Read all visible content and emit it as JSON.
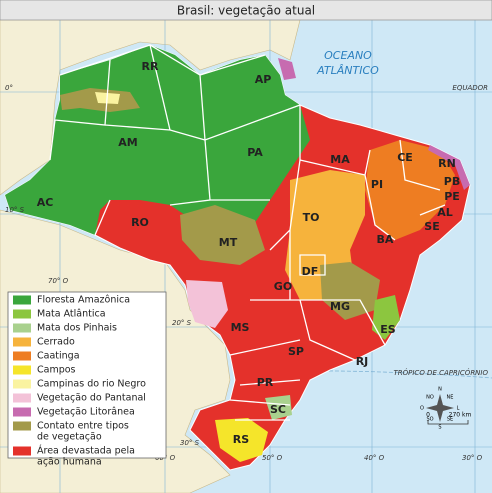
{
  "title": "Brasil: vegetação atual",
  "ocean": [
    "OCEANO",
    "ATLÂNTICO"
  ],
  "lines": {
    "equator": "EQUADOR",
    "tropic": "TRÓPICO DE CAPRICÓRNIO"
  },
  "coordinates": [
    "0°",
    "10° S",
    "20° S",
    "30° S",
    "70° O",
    "60° O",
    "50° O",
    "40° O",
    "30° O"
  ],
  "states": [
    "RR",
    "AP",
    "AM",
    "PA",
    "AC",
    "RO",
    "MT",
    "TO",
    "MA",
    "PI",
    "CE",
    "RN",
    "PB",
    "PE",
    "AL",
    "SE",
    "BA",
    "DF",
    "GO",
    "MG",
    "MS",
    "ES",
    "SP",
    "RJ",
    "PR",
    "SC",
    "RS"
  ],
  "legend": [
    {
      "label": [
        "Floresta Amazônica"
      ],
      "color": "#3aa63c"
    },
    {
      "label": [
        "Mata Atlântica"
      ],
      "color": "#8cc63f"
    },
    {
      "label": [
        "Mata dos Pinhais"
      ],
      "color": "#a9d18e"
    },
    {
      "label": [
        "Cerrado"
      ],
      "color": "#f6b33c"
    },
    {
      "label": [
        "Caatinga"
      ],
      "color": "#ee7d22"
    },
    {
      "label": [
        "Campos"
      ],
      "color": "#f5e52a"
    },
    {
      "label": [
        "Campinas do rio Negro"
      ],
      "color": "#faf3a0"
    },
    {
      "label": [
        "Vegetação do Pantanal"
      ],
      "color": "#f3c2d8"
    },
    {
      "label": [
        "Vegetação Litorânea"
      ],
      "color": "#c76bb0"
    },
    {
      "label": [
        "Contato entre tipos",
        "de vegetação"
      ],
      "color": "#a39a4a"
    },
    {
      "label": [
        "Área devastada pela",
        "ação humana"
      ],
      "color": "#e4312b"
    }
  ],
  "scale": {
    "start": "0",
    "end": "270 km"
  },
  "compass": [
    "N",
    "NE",
    "L",
    "SE",
    "S",
    "SO",
    "O",
    "NO"
  ]
}
